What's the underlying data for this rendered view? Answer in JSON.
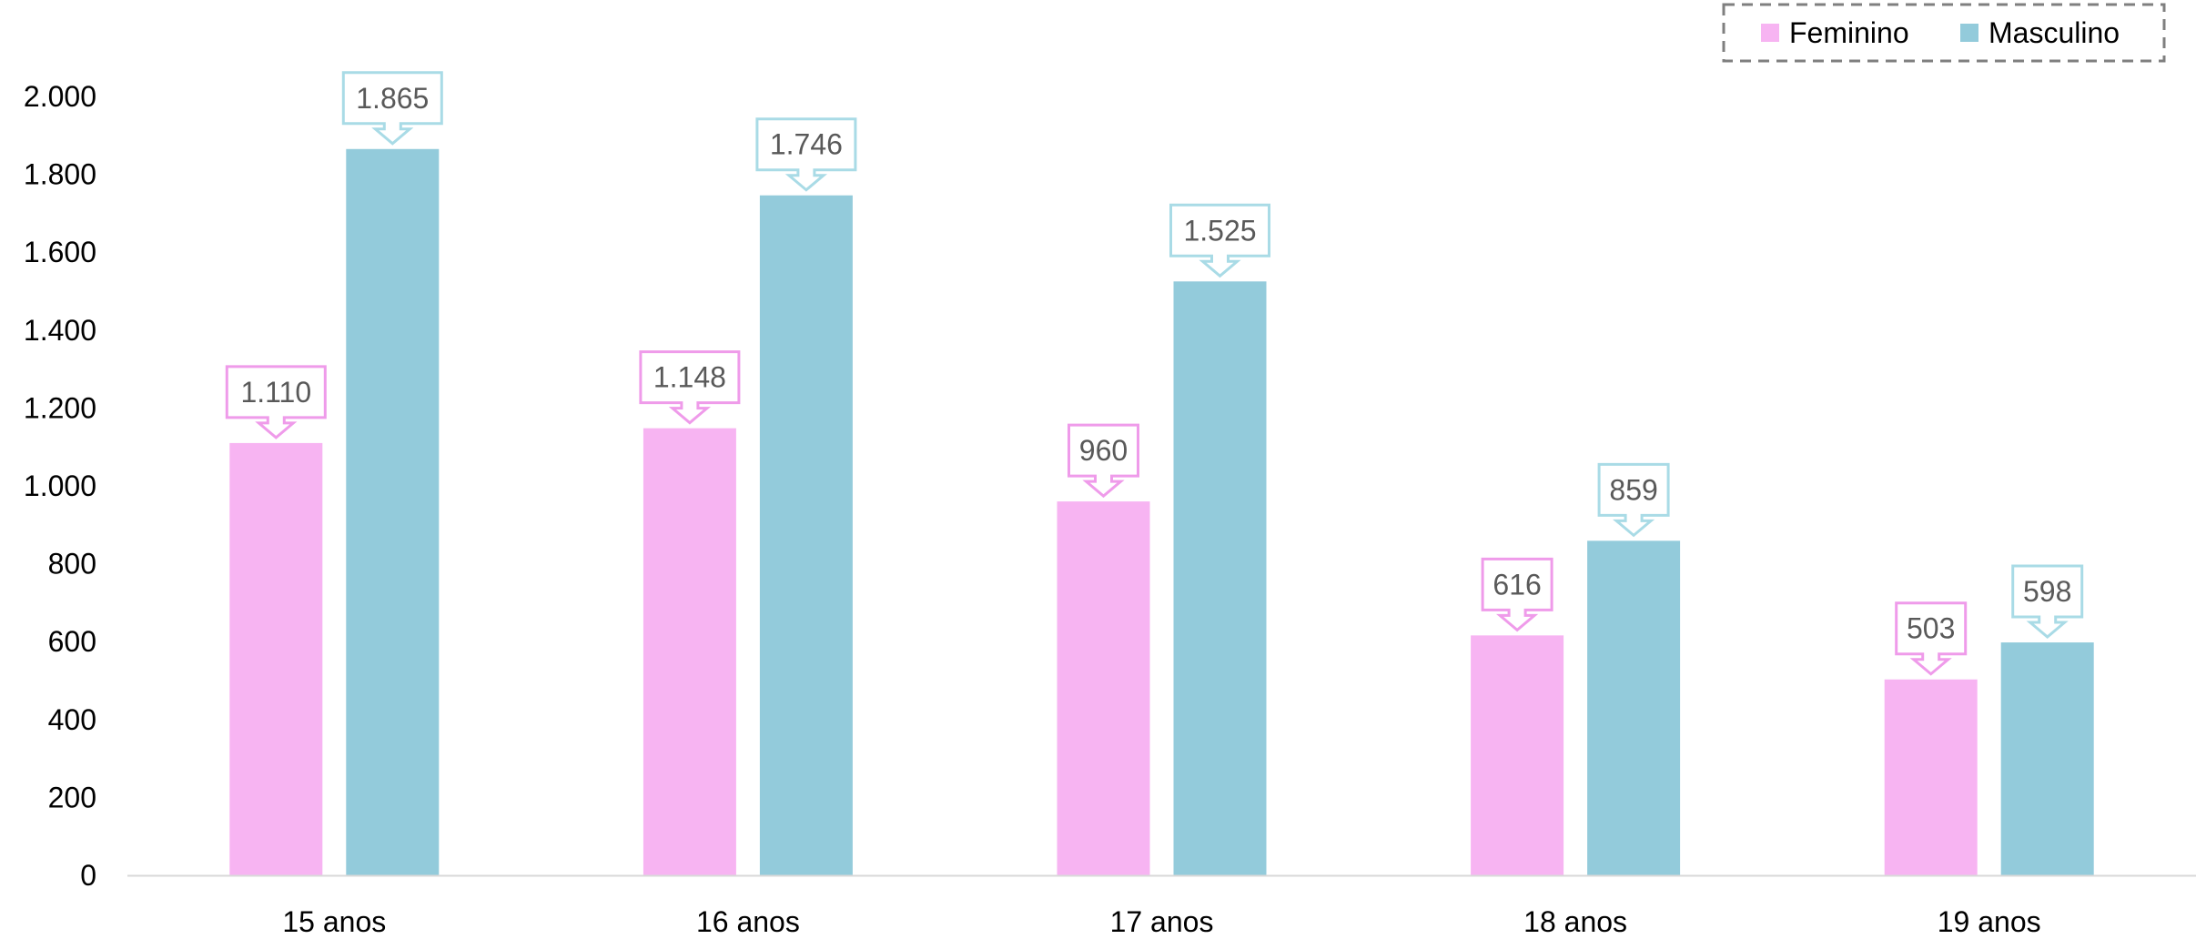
{
  "chart_data": {
    "type": "bar",
    "categories": [
      "15 anos",
      "16 anos",
      "17 anos",
      "18 anos",
      "19 anos"
    ],
    "series": [
      {
        "name": "Feminino",
        "values": [
          1110,
          1148,
          960,
          616,
          503
        ],
        "labels": [
          "1.110",
          "1.148",
          "960",
          "616",
          "503"
        ],
        "color": "#f7b4f2",
        "label_border": "#ef9bea"
      },
      {
        "name": "Masculino",
        "values": [
          1865,
          1746,
          1525,
          859,
          598
        ],
        "labels": [
          "1.865",
          "1.746",
          "1.525",
          "859",
          "598"
        ],
        "color": "#93cbdb",
        "label_border": "#a9dbe6"
      }
    ],
    "yticks": [
      0,
      200,
      400,
      600,
      800,
      1000,
      1200,
      1400,
      1600,
      1800,
      2000
    ],
    "ytick_labels": [
      "0",
      "200",
      "400",
      "600",
      "800",
      "1.000",
      "1.200",
      "1.400",
      "1.600",
      "1.800",
      "2.000"
    ],
    "ylim": [
      0,
      2000
    ],
    "title": "",
    "xlabel": "",
    "ylabel": "",
    "grid": false,
    "legend_position": "top-right",
    "axis_color": "#d9d9d9"
  }
}
